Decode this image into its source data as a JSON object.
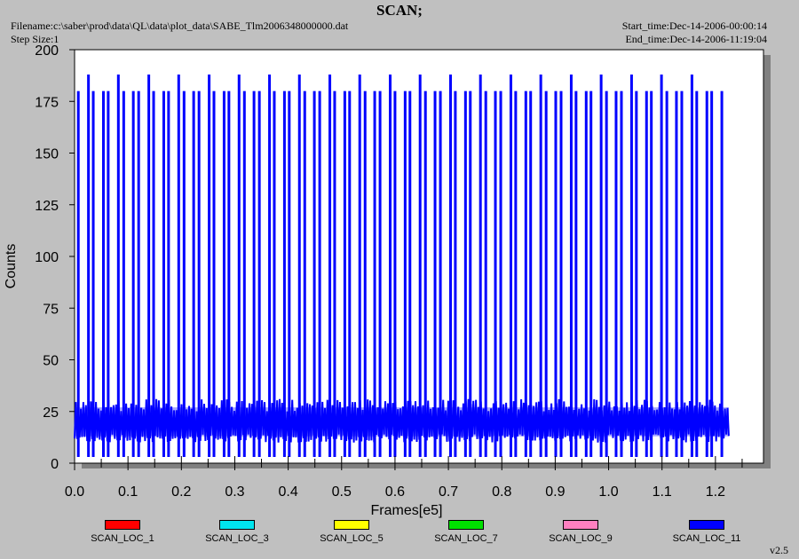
{
  "header": {
    "title": "SCAN;",
    "filename": "Filename:c:\\saber\\prod\\data\\QL\\data\\plot_data\\SABE_Tlm2006348000000.dat",
    "step_size": "Step Size:1",
    "start_time": "Start_time:Dec-14-2006-00:00:14",
    "end_time": "End_time:Dec-14-2006-11:19:04"
  },
  "version": "v2.5",
  "chart_data": {
    "type": "line",
    "title": "SCAN;",
    "xlabel": "Frames[e5]",
    "ylabel": "Counts",
    "xlim": [
      0,
      1.29
    ],
    "ylim": [
      0,
      200
    ],
    "x_ticks": [
      "0.0",
      "0.1",
      "0.2",
      "0.3",
      "0.4",
      "0.5",
      "0.6",
      "0.7",
      "0.8",
      "0.9",
      "1.0",
      "1.1",
      "1.2"
    ],
    "y_ticks": [
      "0",
      "25",
      "50",
      "75",
      "100",
      "125",
      "150",
      "175",
      "200"
    ],
    "grid": false,
    "legend_position": "bottom",
    "series": [
      {
        "name": "SCAN_LOC_1",
        "color": "#ff0000"
      },
      {
        "name": "SCAN_LOC_3",
        "color": "#00e5ee"
      },
      {
        "name": "SCAN_LOC_5",
        "color": "#ffff00"
      },
      {
        "name": "SCAN_LOC_7",
        "color": "#00e000"
      },
      {
        "name": "SCAN_LOC_9",
        "color": "#ff80c0"
      },
      {
        "name": "SCAN_LOC_11",
        "color": "#0000ff",
        "baseline_range": [
          10,
          31
        ],
        "x_range": [
          0.0,
          1.225
        ],
        "spikes": [
          {
            "x": 0.007,
            "y": 180
          },
          {
            "x": 0.026,
            "y": 188
          },
          {
            "x": 0.035,
            "y": 180
          },
          {
            "x": 0.054,
            "y": 180
          },
          {
            "x": 0.063,
            "y": 180
          },
          {
            "x": 0.082,
            "y": 188
          },
          {
            "x": 0.092,
            "y": 180
          },
          {
            "x": 0.11,
            "y": 180
          },
          {
            "x": 0.12,
            "y": 180
          },
          {
            "x": 0.139,
            "y": 188
          },
          {
            "x": 0.148,
            "y": 180
          },
          {
            "x": 0.167,
            "y": 180
          },
          {
            "x": 0.176,
            "y": 180
          },
          {
            "x": 0.195,
            "y": 188
          },
          {
            "x": 0.205,
            "y": 180
          },
          {
            "x": 0.223,
            "y": 180
          },
          {
            "x": 0.233,
            "y": 180
          },
          {
            "x": 0.252,
            "y": 188
          },
          {
            "x": 0.261,
            "y": 180
          },
          {
            "x": 0.28,
            "y": 180
          },
          {
            "x": 0.289,
            "y": 180
          },
          {
            "x": 0.308,
            "y": 188
          },
          {
            "x": 0.318,
            "y": 180
          },
          {
            "x": 0.336,
            "y": 180
          },
          {
            "x": 0.346,
            "y": 180
          },
          {
            "x": 0.365,
            "y": 188
          },
          {
            "x": 0.374,
            "y": 180
          },
          {
            "x": 0.393,
            "y": 180
          },
          {
            "x": 0.402,
            "y": 180
          },
          {
            "x": 0.421,
            "y": 188
          },
          {
            "x": 0.431,
            "y": 180
          },
          {
            "x": 0.449,
            "y": 180
          },
          {
            "x": 0.459,
            "y": 180
          },
          {
            "x": 0.478,
            "y": 188
          },
          {
            "x": 0.487,
            "y": 180
          },
          {
            "x": 0.506,
            "y": 180
          },
          {
            "x": 0.515,
            "y": 180
          },
          {
            "x": 0.534,
            "y": 188
          },
          {
            "x": 0.544,
            "y": 180
          },
          {
            "x": 0.562,
            "y": 180
          },
          {
            "x": 0.572,
            "y": 180
          },
          {
            "x": 0.591,
            "y": 188
          },
          {
            "x": 0.6,
            "y": 180
          },
          {
            "x": 0.619,
            "y": 180
          },
          {
            "x": 0.628,
            "y": 180
          },
          {
            "x": 0.647,
            "y": 188
          },
          {
            "x": 0.657,
            "y": 180
          },
          {
            "x": 0.675,
            "y": 180
          },
          {
            "x": 0.685,
            "y": 180
          },
          {
            "x": 0.704,
            "y": 188
          },
          {
            "x": 0.713,
            "y": 180
          },
          {
            "x": 0.732,
            "y": 180
          },
          {
            "x": 0.741,
            "y": 180
          },
          {
            "x": 0.76,
            "y": 188
          },
          {
            "x": 0.77,
            "y": 180
          },
          {
            "x": 0.788,
            "y": 180
          },
          {
            "x": 0.798,
            "y": 180
          },
          {
            "x": 0.817,
            "y": 188
          },
          {
            "x": 0.826,
            "y": 180
          },
          {
            "x": 0.845,
            "y": 180
          },
          {
            "x": 0.854,
            "y": 180
          },
          {
            "x": 0.873,
            "y": 188
          },
          {
            "x": 0.883,
            "y": 180
          },
          {
            "x": 0.901,
            "y": 180
          },
          {
            "x": 0.911,
            "y": 180
          },
          {
            "x": 0.93,
            "y": 188
          },
          {
            "x": 0.939,
            "y": 180
          },
          {
            "x": 0.958,
            "y": 180
          },
          {
            "x": 0.967,
            "y": 180
          },
          {
            "x": 0.986,
            "y": 188
          },
          {
            "x": 0.996,
            "y": 180
          },
          {
            "x": 1.014,
            "y": 180
          },
          {
            "x": 1.024,
            "y": 180
          },
          {
            "x": 1.043,
            "y": 188
          },
          {
            "x": 1.052,
            "y": 180
          },
          {
            "x": 1.071,
            "y": 180
          },
          {
            "x": 1.08,
            "y": 180
          },
          {
            "x": 1.099,
            "y": 188
          },
          {
            "x": 1.109,
            "y": 180
          },
          {
            "x": 1.127,
            "y": 180
          },
          {
            "x": 1.137,
            "y": 180
          },
          {
            "x": 1.156,
            "y": 188
          },
          {
            "x": 1.165,
            "y": 180
          },
          {
            "x": 1.184,
            "y": 180
          },
          {
            "x": 1.193,
            "y": 180
          },
          {
            "x": 1.212,
            "y": 180
          }
        ]
      }
    ]
  }
}
